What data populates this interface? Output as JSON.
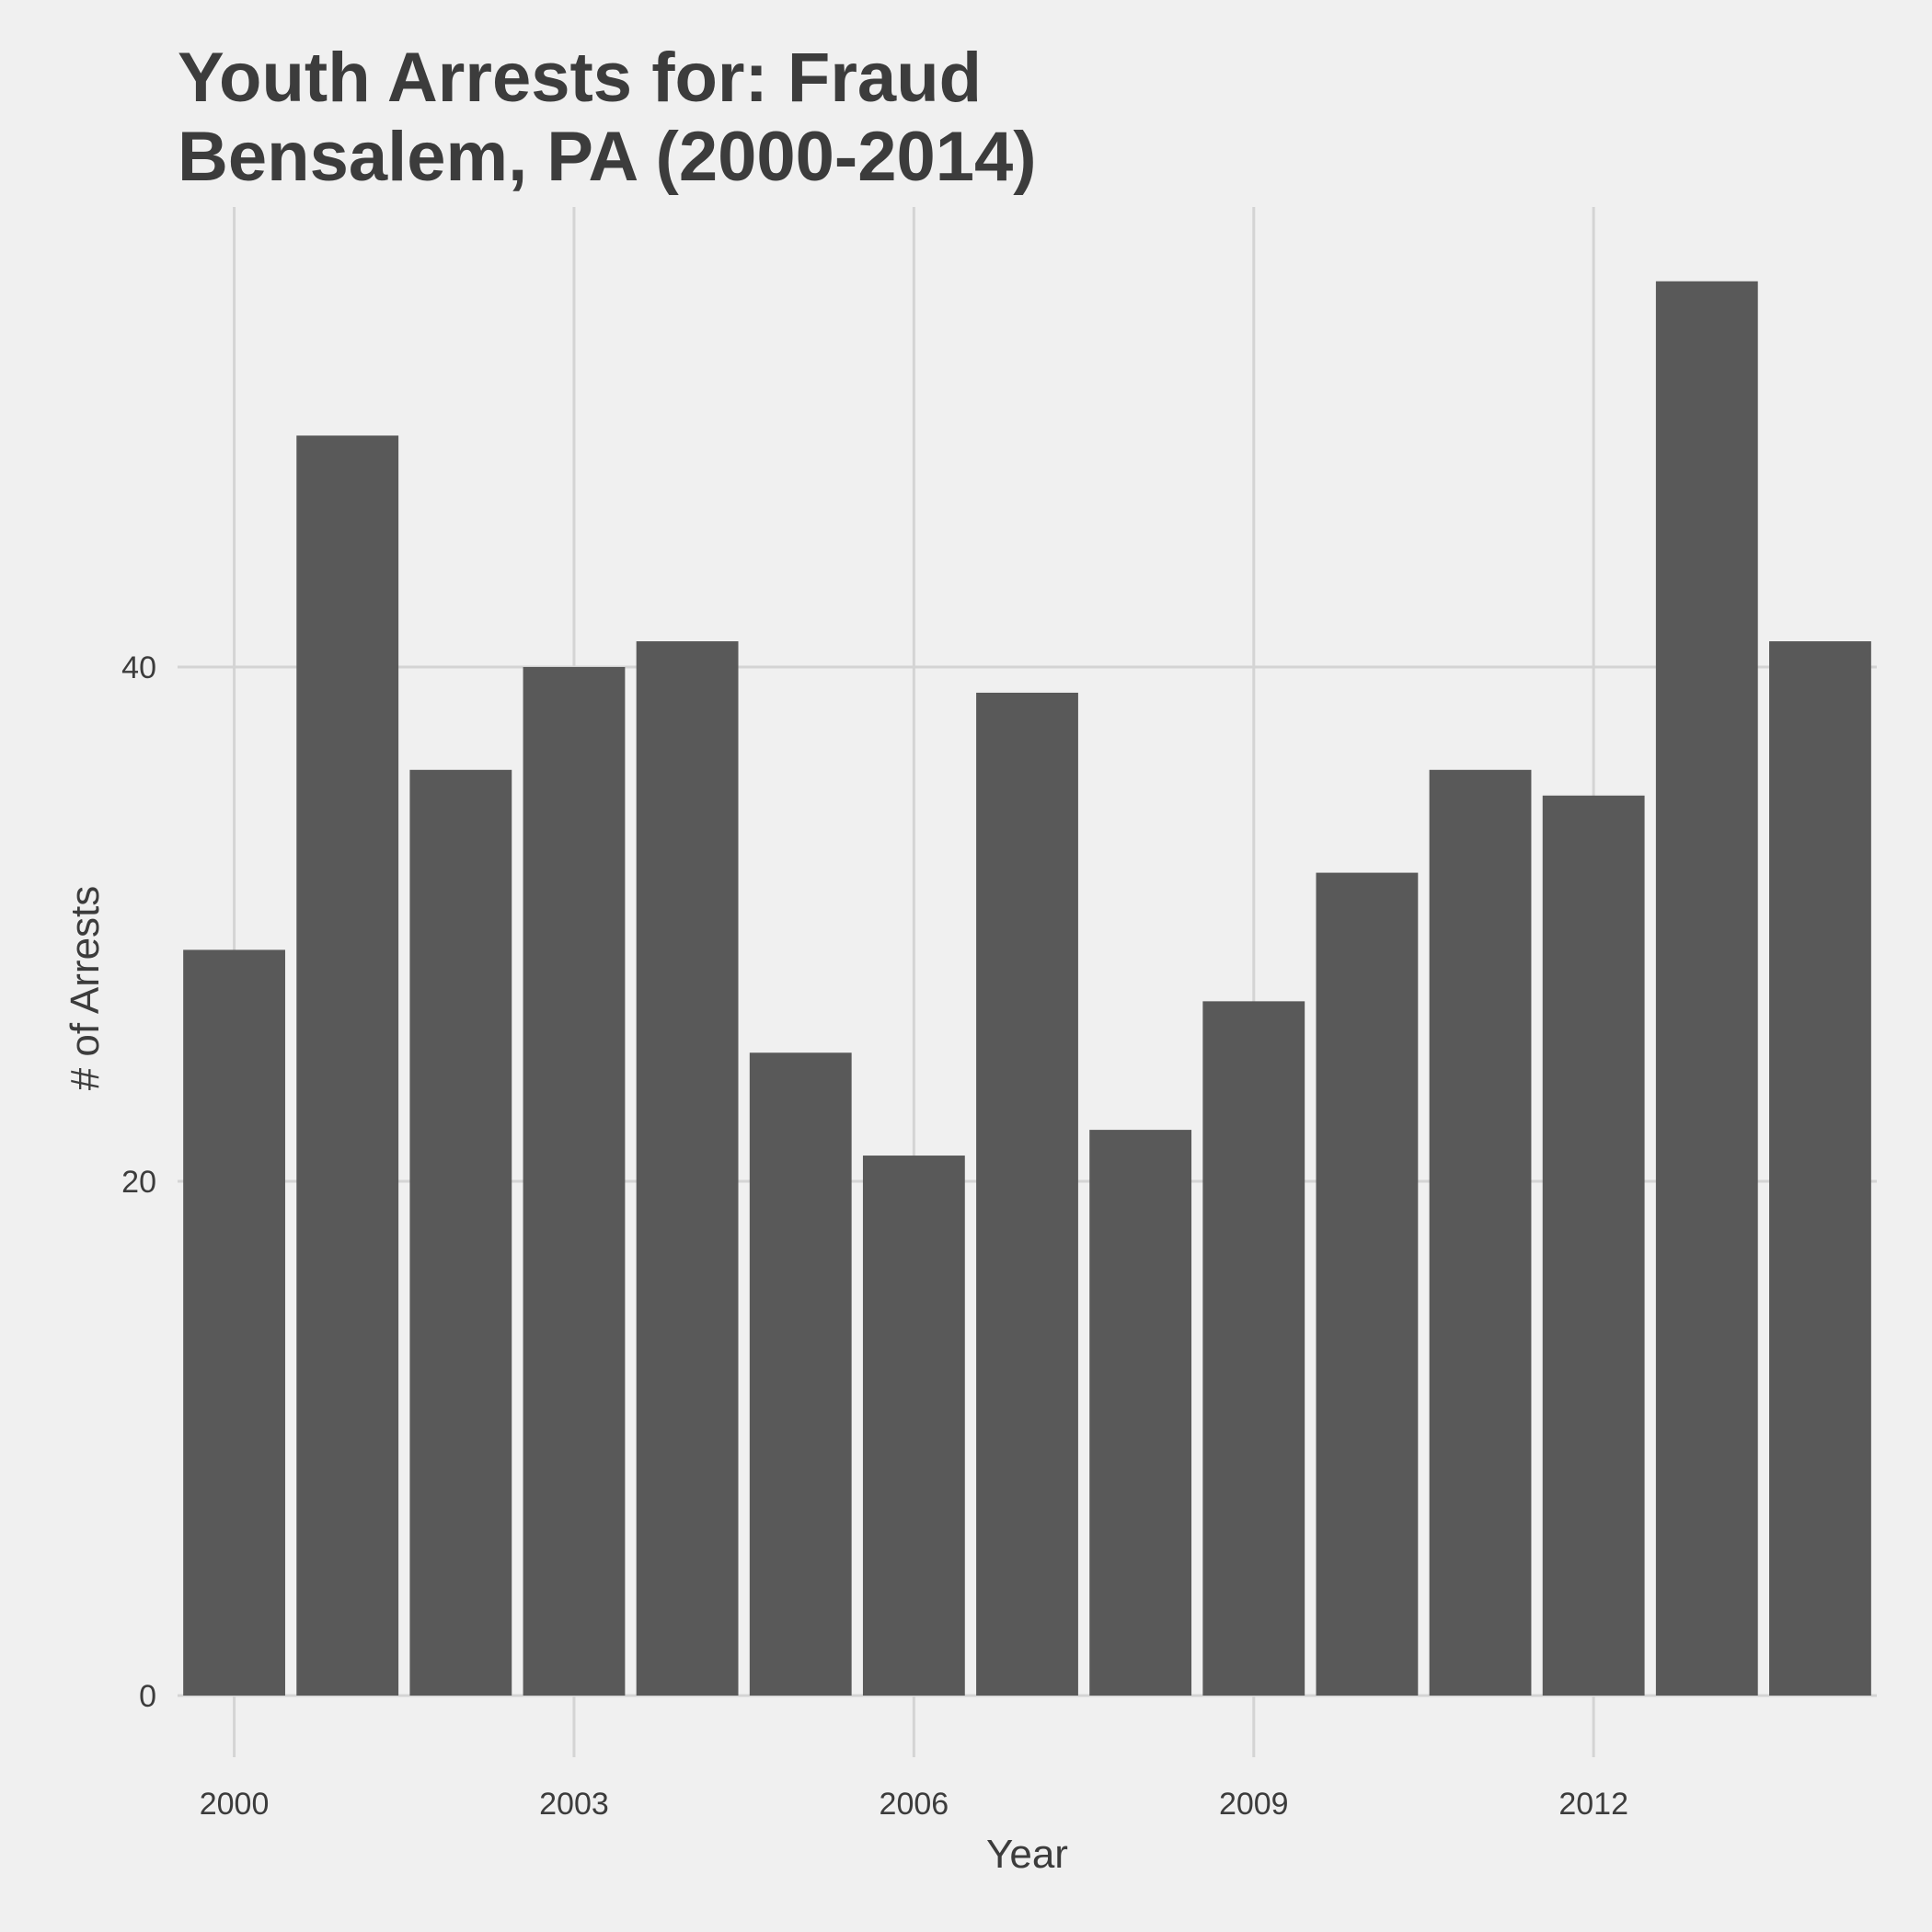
{
  "chart_data": {
    "type": "bar",
    "title_lines": [
      "Youth Arrests for: Fraud",
      "Bensalem, PA (2000-2014)"
    ],
    "xlabel": "Year",
    "ylabel": "# of Arrests",
    "categories": [
      "2000",
      "2001",
      "2002",
      "2003",
      "2004",
      "2005",
      "2006",
      "2007",
      "2008",
      "2009",
      "2010",
      "2011",
      "2012",
      "2013",
      "2014"
    ],
    "values": [
      29,
      49,
      36,
      40,
      41,
      25,
      21,
      39,
      22,
      27,
      32,
      36,
      35,
      55,
      41
    ],
    "x_ticks": [
      2000,
      2003,
      2006,
      2009,
      2012
    ],
    "y_ticks": [
      0,
      20,
      40
    ],
    "ylim": [
      0,
      57
    ],
    "grid": true,
    "bar_color": "#595959",
    "grid_color": "#d4d4d4",
    "background_color": "#f0f0f0"
  }
}
